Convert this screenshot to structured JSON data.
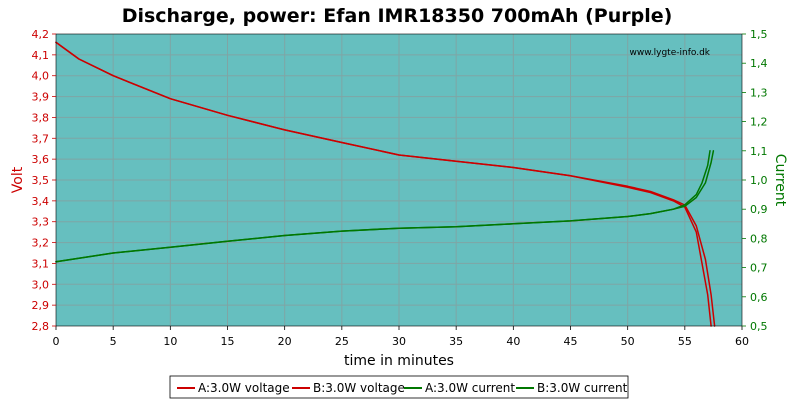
{
  "chart_data": {
    "type": "line",
    "title": "Discharge, power: Efan IMR18350 700mAh (Purple)",
    "watermark": "www.lygte-info.dk",
    "xlabel": "time in minutes",
    "ylabel_left": "Volt",
    "ylabel_right": "Current",
    "xlim": [
      0,
      60
    ],
    "ylim_left": [
      2.8,
      4.2
    ],
    "ylim_right": [
      0.5,
      1.5
    ],
    "x_ticks": [
      "0",
      "5",
      "10",
      "15",
      "20",
      "25",
      "30",
      "35",
      "40",
      "45",
      "50",
      "55",
      "60"
    ],
    "y_ticks_left": [
      "2,8",
      "2,9",
      "3,0",
      "3,1",
      "3,2",
      "3,3",
      "3,4",
      "3,5",
      "3,6",
      "3,7",
      "3,8",
      "3,9",
      "4,0",
      "4,1",
      "4,2"
    ],
    "y_ticks_right": [
      "0,5",
      "0,6",
      "0,7",
      "0,8",
      "0,9",
      "1,0",
      "1,1",
      "1,2",
      "1,3",
      "1,4",
      "1,5"
    ],
    "grid": true,
    "legend_position": "bottom-center",
    "colors": {
      "plot_bg": "#66bfbf",
      "grid": "#7fa5a5",
      "voltage": "#cc0000",
      "current": "#007700",
      "left_axis": "#cc0000",
      "right_axis": "#007700"
    },
    "series": [
      {
        "name": "A:3.0W voltage",
        "axis": "left",
        "x": [
          0,
          0.5,
          2,
          5,
          10,
          15,
          20,
          25,
          30,
          35,
          40,
          45,
          50,
          52,
          54,
          55,
          56,
          56.5,
          57,
          57.3
        ],
        "y": [
          4.16,
          4.14,
          4.08,
          4.0,
          3.89,
          3.81,
          3.74,
          3.68,
          3.62,
          3.59,
          3.56,
          3.52,
          3.465,
          3.44,
          3.4,
          3.37,
          3.25,
          3.1,
          2.95,
          2.8
        ]
      },
      {
        "name": "B:3.0W voltage",
        "axis": "left",
        "x": [
          0,
          0.5,
          2,
          5,
          10,
          15,
          20,
          25,
          30,
          35,
          40,
          45,
          50,
          52,
          54,
          55,
          56,
          56.8,
          57.3,
          57.6
        ],
        "y": [
          4.16,
          4.14,
          4.08,
          4.0,
          3.89,
          3.81,
          3.74,
          3.68,
          3.62,
          3.59,
          3.56,
          3.52,
          3.47,
          3.445,
          3.405,
          3.38,
          3.28,
          3.12,
          2.95,
          2.8
        ]
      },
      {
        "name": "A:3.0W current",
        "axis": "right",
        "x": [
          0,
          5,
          10,
          15,
          20,
          25,
          30,
          35,
          40,
          45,
          50,
          52,
          54,
          55,
          56,
          56.5,
          57,
          57.2
        ],
        "y": [
          0.72,
          0.75,
          0.77,
          0.79,
          0.81,
          0.825,
          0.835,
          0.84,
          0.85,
          0.86,
          0.875,
          0.885,
          0.9,
          0.915,
          0.95,
          0.99,
          1.05,
          1.1
        ]
      },
      {
        "name": "B:3.0W current",
        "axis": "right",
        "x": [
          0,
          5,
          10,
          15,
          20,
          25,
          30,
          35,
          40,
          45,
          50,
          52,
          54,
          55,
          56,
          56.8,
          57.3,
          57.5
        ],
        "y": [
          0.72,
          0.75,
          0.77,
          0.79,
          0.81,
          0.825,
          0.835,
          0.84,
          0.85,
          0.86,
          0.875,
          0.885,
          0.9,
          0.91,
          0.94,
          0.99,
          1.06,
          1.1
        ]
      }
    ]
  }
}
